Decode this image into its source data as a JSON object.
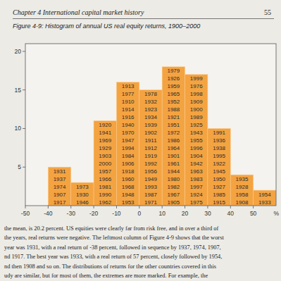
{
  "page": {
    "header": "Chapter 4 International capital market history",
    "page_number": "55",
    "body": [
      "the mean, is 20.2 percent. US equities were clearly far from risk free, and in over a third of",
      "the years, real returns were negative. The leftmost column of Figure 4-9 shows that the worst",
      "year was 1931, with a real return of -38 percent, followed in sequence by 1937, 1974, 1907,",
      "nd 1917. The best year was 1933, with a real return of 57 percent, closely followed by 1954,",
      "nd then 1908 and so on. The distributions of returns for the other countries covered in this",
      "udy are similar, but for most of them, the extremes are more marked. For example, the"
    ]
  },
  "chart_data": {
    "type": "histogram",
    "title": "Figure 4-9: Histogram of annual US real equity returns, 1900–2000",
    "x_label": "%",
    "bins": [
      -50,
      -40,
      -30,
      -20,
      -10,
      0,
      10,
      20,
      30,
      40,
      50,
      60
    ],
    "values": [
      0,
      5,
      3,
      11,
      16,
      15,
      18,
      17,
      10,
      4,
      2
    ],
    "annotations": [
      [],
      [
        "1931",
        "1937",
        "1974",
        "1907",
        "1917"
      ],
      [
        "1973",
        "1930",
        "1946"
      ],
      [
        "1920",
        "1941",
        "1969",
        "1929",
        "1903",
        "2000",
        "1957",
        "1966",
        "1981",
        "1990",
        "1962"
      ],
      [
        "1913",
        "1977",
        "1910",
        "1914",
        "1916",
        "1940",
        "1970",
        "1947",
        "1994",
        "1984",
        "1906",
        "1918",
        "1960",
        "1968",
        "1948",
        "1953"
      ],
      [
        "1978",
        "1932",
        "1923",
        "1934",
        "1939",
        "1902",
        "1911",
        "1912",
        "1919",
        "1992",
        "1956",
        "1949",
        "1993",
        "1987",
        "1971"
      ],
      [
        "1979",
        "1926",
        "1959",
        "1965",
        "1952",
        "1988",
        "1921",
        "1951",
        "1972",
        "1986",
        "1964",
        "1901",
        "1961",
        "1944",
        "1980",
        "1982",
        "1967",
        "1905"
      ],
      [
        "1999",
        "1976",
        "1998",
        "1909",
        "1900",
        "1989",
        "1925",
        "1943",
        "1955",
        "1996",
        "1904",
        "1942",
        "1963",
        "1983",
        "1997",
        "1924",
        "1975"
      ],
      [
        "1991",
        "1936",
        "1938",
        "1995",
        "1922",
        "1945",
        "1950",
        "1927",
        "1985",
        "1915"
      ],
      [
        "1935",
        "1928",
        "1958",
        "1908"
      ],
      [
        "1954",
        "1933"
      ]
    ],
    "color": "#f4a341",
    "xlim": [
      -50,
      60
    ],
    "xticks": [
      -50,
      -40,
      -30,
      -20,
      -10,
      0,
      10,
      20,
      30,
      40,
      50
    ],
    "ylim": [
      0,
      21
    ],
    "yticks": [
      5,
      10,
      15,
      20
    ],
    "grid": false
  }
}
